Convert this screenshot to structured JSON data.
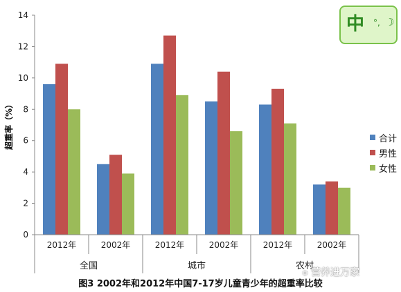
{
  "chart_data": {
    "type": "bar",
    "ylabel": "超重率（%）",
    "ylim": [
      0,
      14
    ],
    "yticks": [
      0,
      2,
      4,
      6,
      8,
      10,
      12,
      14
    ],
    "grid": false,
    "legend_position": "right",
    "categories": [
      "2012年",
      "2002年",
      "2012年",
      "2002年",
      "2012年",
      "2002年"
    ],
    "groups": [
      {
        "label": "全国",
        "span": [
          0,
          1
        ]
      },
      {
        "label": "城市",
        "span": [
          2,
          3
        ]
      },
      {
        "label": "农村",
        "span": [
          4,
          5
        ]
      }
    ],
    "series": [
      {
        "name": "合计",
        "color": "#4f81bd",
        "values": [
          9.6,
          4.5,
          10.9,
          8.5,
          8.3,
          3.2
        ]
      },
      {
        "name": "男性",
        "color": "#c0504d",
        "values": [
          10.9,
          5.1,
          12.7,
          10.4,
          9.3,
          3.4
        ]
      },
      {
        "name": "女性",
        "color": "#9bbb59",
        "values": [
          8.0,
          3.9,
          8.9,
          6.6,
          7.1,
          3.0
        ]
      }
    ],
    "caption": "图3  2002年和2012年中国7-17岁儿童青少年的超重率比较"
  },
  "ime_badge": {
    "char": "中",
    "dots": "°,",
    "moon": "☽"
  },
  "watermark": {
    "icon": "⚙",
    "text": "营养进万家"
  }
}
